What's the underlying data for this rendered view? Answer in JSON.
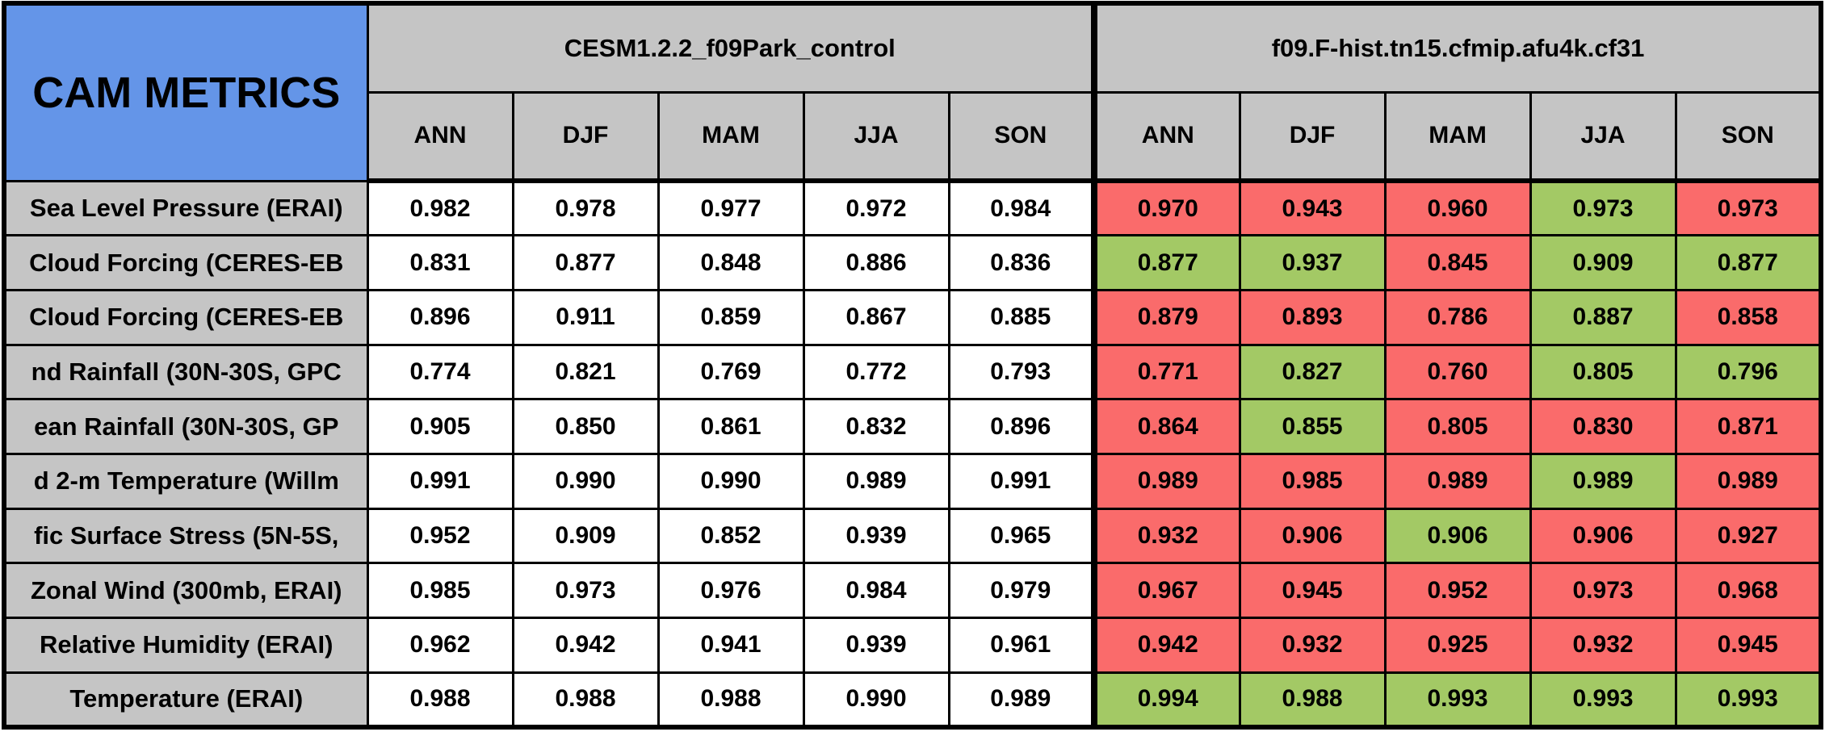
{
  "colors": {
    "title_bg_blue": "#6495E8",
    "header_gray": "#C5C5C5",
    "worse_red": "#FA6B6B",
    "better_green": "#A3C965",
    "cell_white": "#FFFFFF",
    "border_black": "#000000"
  },
  "chart_data": {
    "type": "table",
    "title": "CAM METRICS",
    "column_groups": [
      "CESM1.2.2_f09Park_control",
      "f09.F-hist.tn15.cfmip.afu4k.cf31"
    ],
    "season_columns": [
      "ANN",
      "DJF",
      "MAM",
      "JJA",
      "SON"
    ],
    "rows": [
      {
        "label": "Sea Level Pressure (ERAI)",
        "control": [
          "0.982",
          "0.978",
          "0.977",
          "0.972",
          "0.984"
        ],
        "experiment": [
          "0.970",
          "0.943",
          "0.960",
          "0.973",
          "0.973"
        ],
        "experiment_cell_colors": [
          "red",
          "red",
          "red",
          "green",
          "red"
        ]
      },
      {
        "label": "Cloud Forcing (CERES-EB",
        "control": [
          "0.831",
          "0.877",
          "0.848",
          "0.886",
          "0.836"
        ],
        "experiment": [
          "0.877",
          "0.937",
          "0.845",
          "0.909",
          "0.877"
        ],
        "experiment_cell_colors": [
          "green",
          "green",
          "red",
          "green",
          "green"
        ]
      },
      {
        "label": "Cloud Forcing (CERES-EB",
        "control": [
          "0.896",
          "0.911",
          "0.859",
          "0.867",
          "0.885"
        ],
        "experiment": [
          "0.879",
          "0.893",
          "0.786",
          "0.887",
          "0.858"
        ],
        "experiment_cell_colors": [
          "red",
          "red",
          "red",
          "green",
          "red"
        ]
      },
      {
        "label": "nd Rainfall (30N-30S, GPC",
        "control": [
          "0.774",
          "0.821",
          "0.769",
          "0.772",
          "0.793"
        ],
        "experiment": [
          "0.771",
          "0.827",
          "0.760",
          "0.805",
          "0.796"
        ],
        "experiment_cell_colors": [
          "red",
          "green",
          "red",
          "green",
          "green"
        ]
      },
      {
        "label": "ean Rainfall (30N-30S, GP",
        "control": [
          "0.905",
          "0.850",
          "0.861",
          "0.832",
          "0.896"
        ],
        "experiment": [
          "0.864",
          "0.855",
          "0.805",
          "0.830",
          "0.871"
        ],
        "experiment_cell_colors": [
          "red",
          "green",
          "red",
          "red",
          "red"
        ]
      },
      {
        "label": "d 2-m Temperature (Willm",
        "control": [
          "0.991",
          "0.990",
          "0.990",
          "0.989",
          "0.991"
        ],
        "experiment": [
          "0.989",
          "0.985",
          "0.989",
          "0.989",
          "0.989"
        ],
        "experiment_cell_colors": [
          "red",
          "red",
          "red",
          "green",
          "red"
        ]
      },
      {
        "label": "fic Surface Stress (5N-5S,",
        "control": [
          "0.952",
          "0.909",
          "0.852",
          "0.939",
          "0.965"
        ],
        "experiment": [
          "0.932",
          "0.906",
          "0.906",
          "0.906",
          "0.927"
        ],
        "experiment_cell_colors": [
          "red",
          "red",
          "green",
          "red",
          "red"
        ]
      },
      {
        "label": "Zonal Wind (300mb, ERAI)",
        "control": [
          "0.985",
          "0.973",
          "0.976",
          "0.984",
          "0.979"
        ],
        "experiment": [
          "0.967",
          "0.945",
          "0.952",
          "0.973",
          "0.968"
        ],
        "experiment_cell_colors": [
          "red",
          "red",
          "red",
          "red",
          "red"
        ]
      },
      {
        "label": "Relative Humidity (ERAI)",
        "control": [
          "0.962",
          "0.942",
          "0.941",
          "0.939",
          "0.961"
        ],
        "experiment": [
          "0.942",
          "0.932",
          "0.925",
          "0.932",
          "0.945"
        ],
        "experiment_cell_colors": [
          "red",
          "red",
          "red",
          "red",
          "red"
        ]
      },
      {
        "label": "Temperature (ERAI)",
        "control": [
          "0.988",
          "0.988",
          "0.988",
          "0.990",
          "0.989"
        ],
        "experiment": [
          "0.994",
          "0.988",
          "0.993",
          "0.993",
          "0.993"
        ],
        "experiment_cell_colors": [
          "green",
          "green",
          "green",
          "green",
          "green"
        ]
      }
    ]
  }
}
